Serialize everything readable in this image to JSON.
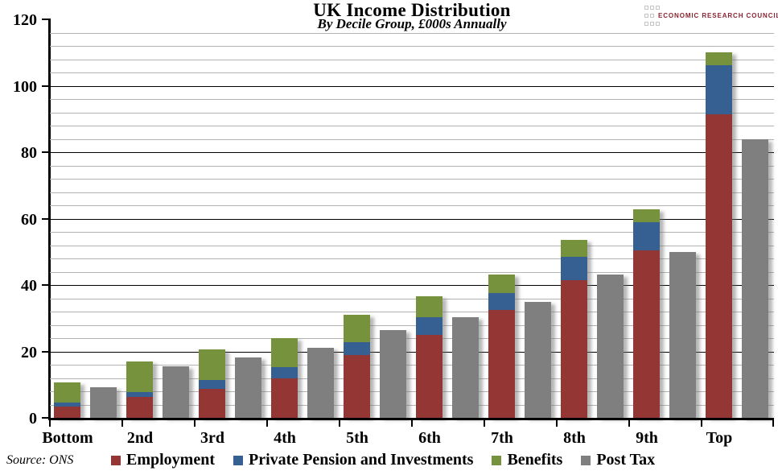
{
  "header": {
    "title": "UK Income Distribution",
    "subtitle": "By Decile Group, £000s Annually"
  },
  "logo": {
    "text": "ECONOMIC RESEARCH COUNCIL",
    "color": "#8b2332"
  },
  "source_note": "Source: ONS",
  "chart_data": {
    "type": "bar",
    "title": "UK Income Distribution",
    "subtitle": "By Decile Group, £000s Annually",
    "xlabel": "",
    "ylabel": "",
    "ylim": [
      0,
      120
    ],
    "y_major_ticks": [
      0,
      20,
      40,
      60,
      80,
      100,
      120
    ],
    "y_major_step": 20,
    "y_minor_step": 4,
    "grid": true,
    "legend_position": "bottom",
    "categories": [
      "Bottom",
      "2nd",
      "3rd",
      "4th",
      "5th",
      "6th",
      "7th",
      "8th",
      "9th",
      "Top"
    ],
    "series": [
      {
        "name": "Employment",
        "color": "#943634",
        "stack": true,
        "values": [
          3.5,
          6.2,
          8.8,
          12.0,
          19.0,
          25.0,
          32.4,
          41.4,
          50.4,
          91.5
        ]
      },
      {
        "name": "Private Pension and Investments",
        "color": "#376092",
        "stack": true,
        "values": [
          1.2,
          1.5,
          2.5,
          3.2,
          3.7,
          5.3,
          5.1,
          7.2,
          8.6,
          14.7
        ]
      },
      {
        "name": "Benefits",
        "color": "#76923C",
        "stack": true,
        "values": [
          5.9,
          9.2,
          9.3,
          8.9,
          8.4,
          6.3,
          5.6,
          5.1,
          3.9,
          3.9
        ]
      },
      {
        "name": "Post Tax",
        "color": "#7F7F7F",
        "stack": false,
        "values": [
          9.2,
          15.5,
          18.3,
          21.0,
          26.5,
          30.3,
          35.0,
          43.2,
          50.0,
          84.0
        ]
      }
    ],
    "stacked_totals": [
      10.6,
      16.9,
      20.6,
      24.1,
      31.1,
      36.6,
      43.1,
      53.7,
      62.9,
      110.1
    ],
    "colors": {
      "gridline_minor": "#b3b3b3",
      "gridline_major": "#000000",
      "axis": "#000000"
    }
  }
}
